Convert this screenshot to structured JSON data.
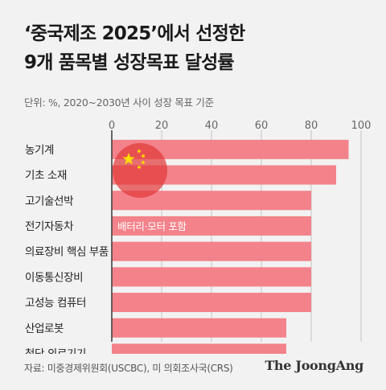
{
  "header": {
    "title_line1": "‘중국제조 2025’에서 선정한",
    "title_line2": "9개 품목별 성장목표 달성률",
    "unit_note": "단위: %, 2020~2030년 사이 성장 목표 기준"
  },
  "footer": {
    "source": "자료: 미중경제위원회(USCBC), 미 의회조사국(CRS)",
    "logo_text": "The JoongAng"
  },
  "colors": {
    "bar": "#f3828a",
    "grid": "#c4c4c4",
    "flag_red": "#e23a3a",
    "flag_star": "#ffde00"
  },
  "chart_data": {
    "type": "bar",
    "orientation": "horizontal",
    "title": "‘중국제조 2025’에서 선정한 9개 품목별 성장목표 달성률",
    "categories": [
      "농기계",
      "기초 소재",
      "고기술선박",
      "전기자동차",
      "의료장비 핵심 부품",
      "이동통신장비",
      "고성능 컴퓨터",
      "산업로봇",
      "첨단 의료기기"
    ],
    "values": [
      95,
      90,
      80,
      80,
      80,
      80,
      80,
      70,
      70
    ],
    "xlim": [
      0,
      100
    ],
    "xticks": [
      0,
      20,
      40,
      60,
      80,
      100
    ],
    "grid": true,
    "annotations": [
      {
        "category": "전기자동차",
        "text": "배터리·모터 포함"
      }
    ]
  }
}
